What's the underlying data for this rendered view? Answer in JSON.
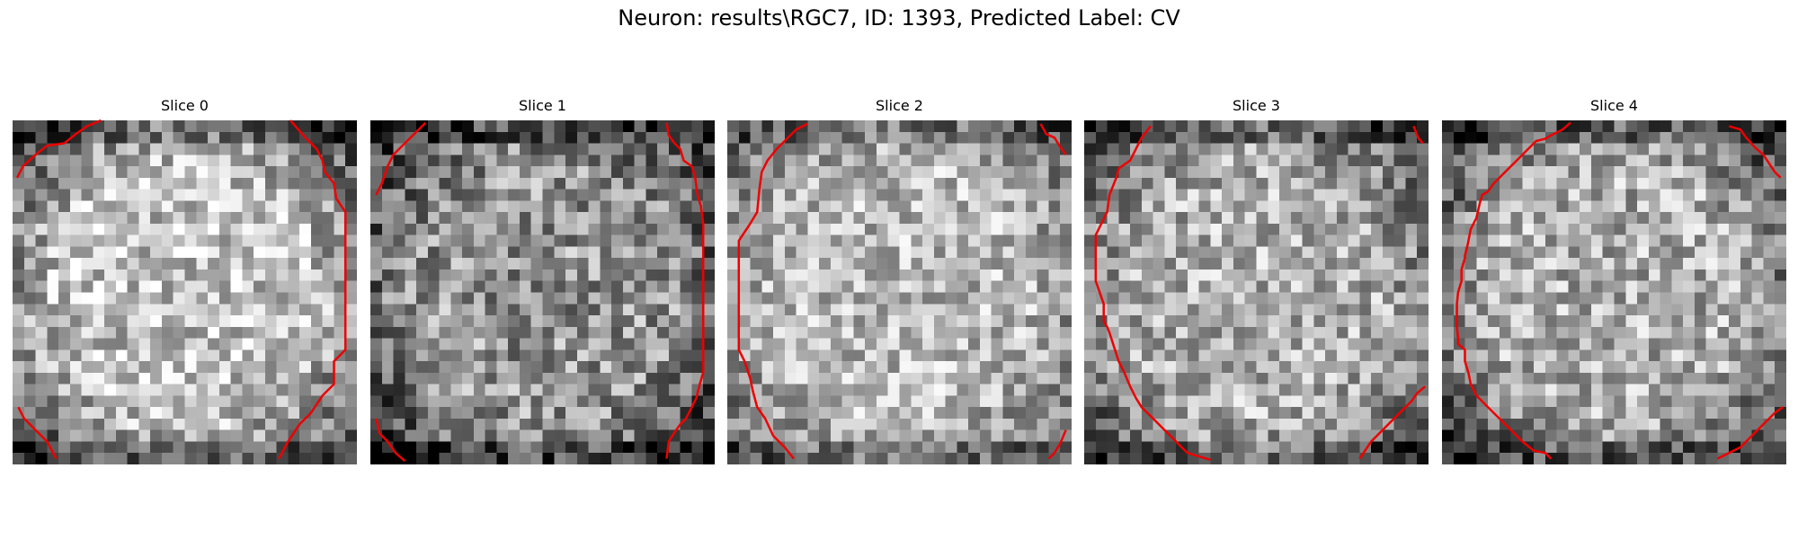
{
  "title": "Neuron: results\\RGC7, ID: 1393, Predicted Label: CV",
  "contour_color": "#ee0000",
  "slices": [
    {
      "label": "Slice 0"
    },
    {
      "label": "Slice 1"
    },
    {
      "label": "Slice 2"
    },
    {
      "label": "Slice 3"
    },
    {
      "label": "Slice 4"
    }
  ]
}
